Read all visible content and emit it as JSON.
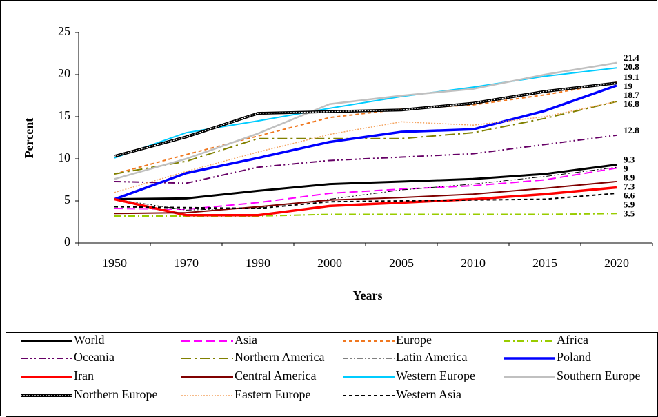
{
  "chart_data": {
    "type": "line",
    "x_label": "Years",
    "y_label": "Percent",
    "categories": [
      "1950",
      "1970",
      "1990",
      "2000",
      "2005",
      "2010",
      "2015",
      "2020"
    ],
    "ylim": [
      0,
      25
    ],
    "yticks": [
      0,
      5,
      10,
      15,
      20,
      25
    ],
    "legend": "bottom",
    "series": [
      {
        "name": "World",
        "color": "#000000",
        "width": 3,
        "dash": "none",
        "show_end_label": true,
        "values": [
          5.2,
          5.3,
          6.2,
          7.0,
          7.3,
          7.6,
          8.2,
          9.3
        ]
      },
      {
        "name": "Asia",
        "color": "#ff00ff",
        "width": 2,
        "dash": "12 6",
        "show_end_label": true,
        "values": [
          4.1,
          4.0,
          4.8,
          5.9,
          6.4,
          6.8,
          7.5,
          8.9
        ]
      },
      {
        "name": "Europe",
        "color": "#f07820",
        "width": 2,
        "dash": "5 4",
        "show_end_label": true,
        "values": [
          8.2,
          10.5,
          12.7,
          14.9,
          15.9,
          16.4,
          17.6,
          19.1
        ]
      },
      {
        "name": "Africa",
        "color": "#99cc00",
        "width": 2,
        "dash": "10 4 2 4",
        "show_end_label": true,
        "values": [
          3.2,
          3.2,
          3.2,
          3.4,
          3.4,
          3.4,
          3.4,
          3.5
        ]
      },
      {
        "name": "Oceania",
        "color": "#660066",
        "width": 2,
        "dash": "10 4 2 4 2 4",
        "show_end_label": true,
        "values": [
          7.3,
          7.1,
          9.0,
          9.8,
          10.2,
          10.6,
          11.7,
          12.8
        ]
      },
      {
        "name": "Northern America",
        "color": "#808000",
        "width": 2,
        "dash": "14 5 3 5",
        "show_end_label": false,
        "values": [
          8.2,
          9.7,
          12.4,
          12.4,
          12.4,
          13.1,
          14.8,
          16.8
        ]
      },
      {
        "name": "Latin America",
        "color": "#000000",
        "width": 1,
        "dash": "8 3 2 3 2 3",
        "show_end_label": true,
        "values": [
          5.2,
          3.9,
          4.2,
          5.2,
          6.3,
          7.0,
          7.9,
          9.0
        ]
      },
      {
        "name": "Poland",
        "color": "#0000ff",
        "width": 3.5,
        "dash": "none",
        "show_end_label": true,
        "values": [
          5.2,
          8.3,
          10.1,
          12.0,
          13.2,
          13.5,
          15.7,
          18.7
        ]
      },
      {
        "name": "Iran",
        "color": "#ff0000",
        "width": 3.5,
        "dash": "none",
        "show_end_label": true,
        "values": [
          5.2,
          3.3,
          3.3,
          4.4,
          4.8,
          5.2,
          5.8,
          6.6
        ]
      },
      {
        "name": "Central America",
        "color": "#800000",
        "width": 2,
        "dash": "none",
        "show_end_label": true,
        "values": [
          3.5,
          3.6,
          4.3,
          5.1,
          5.4,
          5.8,
          6.5,
          7.3
        ]
      },
      {
        "name": "Western Europe",
        "color": "#00ccff",
        "width": 2,
        "dash": "none",
        "show_end_label": true,
        "values": [
          10.1,
          13.1,
          14.5,
          16.0,
          17.4,
          18.5,
          19.8,
          20.8
        ]
      },
      {
        "name": "Southern Europe",
        "color": "#c0c0c0",
        "width": 2.5,
        "dash": "none",
        "show_end_label": true,
        "values": [
          7.6,
          10.0,
          13.0,
          16.5,
          17.5,
          18.3,
          20.0,
          21.4
        ]
      },
      {
        "name": "Northern Europe",
        "color": "#000000",
        "width": 4,
        "dash": "stripe",
        "show_end_label": true,
        "values": [
          10.3,
          12.6,
          15.4,
          15.6,
          15.8,
          16.6,
          18.0,
          19.0
        ]
      },
      {
        "name": "Eastern Europe",
        "color": "#f4a460",
        "width": 1.5,
        "dash": "2 2",
        "show_end_label": true,
        "values": [
          6.0,
          8.5,
          10.8,
          12.9,
          14.4,
          14.0,
          15.0,
          16.8
        ]
      },
      {
        "name": "Western Asia",
        "color": "#000000",
        "width": 2,
        "dash": "5 4",
        "show_end_label": true,
        "values": [
          4.3,
          4.2,
          4.1,
          4.9,
          5.0,
          5.1,
          5.2,
          5.9
        ]
      }
    ]
  }
}
